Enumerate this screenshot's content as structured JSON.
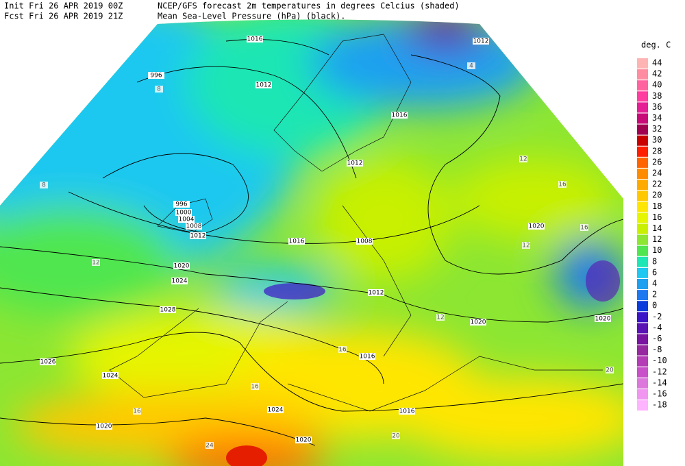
{
  "header": {
    "init": "Init  Fri 26 APR 2019 00Z",
    "fcst": "Fcst Fri 26 APR 2019 21Z",
    "title": "NCEP/GFS forecast 2m temperatures in degrees Celcius (shaded)",
    "subtitle": "Mean Sea-Level Pressure (hPa) (black)."
  },
  "legend": {
    "title": "deg. C",
    "levels": [
      {
        "value": 44,
        "color": "#ffb4b4"
      },
      {
        "value": 42,
        "color": "#ff8ca0"
      },
      {
        "value": 40,
        "color": "#ff64a0"
      },
      {
        "value": 38,
        "color": "#ff3ca0"
      },
      {
        "value": 36,
        "color": "#e61e96"
      },
      {
        "value": 34,
        "color": "#c80a78"
      },
      {
        "value": 32,
        "color": "#a00050"
      },
      {
        "value": 30,
        "color": "#c80000"
      },
      {
        "value": 28,
        "color": "#ff1e00"
      },
      {
        "value": 26,
        "color": "#ff6400"
      },
      {
        "value": 24,
        "color": "#ff8c00"
      },
      {
        "value": 22,
        "color": "#ffaa00"
      },
      {
        "value": 20,
        "color": "#ffc800"
      },
      {
        "value": 18,
        "color": "#ffe600"
      },
      {
        "value": 16,
        "color": "#e6f500"
      },
      {
        "value": 14,
        "color": "#c8f000"
      },
      {
        "value": 12,
        "color": "#8ce632"
      },
      {
        "value": 10,
        "color": "#50e650"
      },
      {
        "value": 8,
        "color": "#1ee6b4"
      },
      {
        "value": 6,
        "color": "#1ec8f0"
      },
      {
        "value": 4,
        "color": "#1ea0f0"
      },
      {
        "value": 2,
        "color": "#1e78f0"
      },
      {
        "value": 0,
        "color": "#0a3cdc"
      },
      {
        "value": -2,
        "color": "#3c14c8"
      },
      {
        "value": -4,
        "color": "#5a14b4"
      },
      {
        "value": -6,
        "color": "#7814a0"
      },
      {
        "value": -8,
        "color": "#9628a0"
      },
      {
        "value": -10,
        "color": "#b43cb4"
      },
      {
        "value": -12,
        "color": "#c850c8"
      },
      {
        "value": -14,
        "color": "#dc78dc"
      },
      {
        "value": -16,
        "color": "#f096f0"
      },
      {
        "value": -18,
        "color": "#ffb4ff"
      }
    ]
  },
  "map": {
    "isobars": [
      "1016",
      "996",
      "1012",
      "1012",
      "1016",
      "1012",
      "996",
      "1000",
      "1004",
      "1008",
      "1012",
      "1016",
      "1008",
      "1020",
      "1020",
      "1024",
      "1028",
      "1012",
      "1020",
      "1020",
      "1026",
      "1024",
      "1016",
      "1024",
      "1016",
      "1020",
      "1020"
    ],
    "temps": [
      "12",
      "8",
      "12",
      "16",
      "16",
      "12",
      "16",
      "20",
      "24",
      "20",
      "16",
      "16",
      "12",
      "8",
      "4"
    ]
  }
}
